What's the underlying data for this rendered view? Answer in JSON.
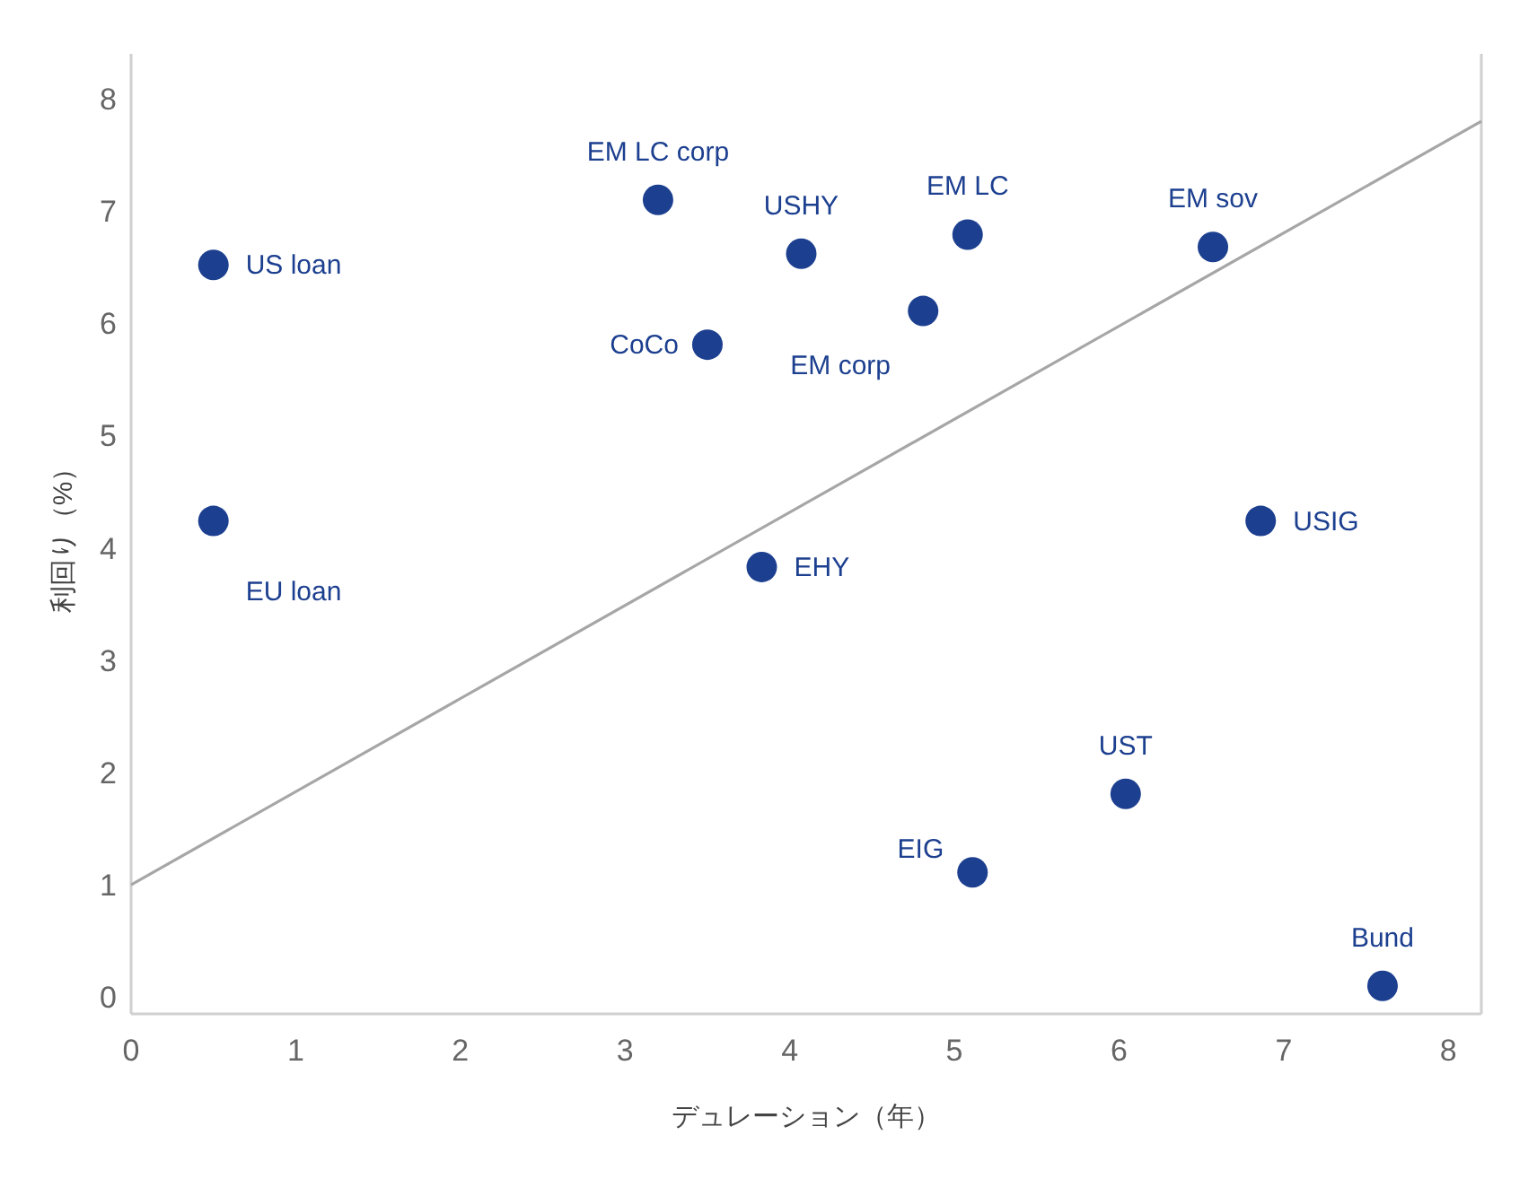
{
  "chart_data": {
    "type": "scatter",
    "xlabel": "デュレーション（年）",
    "ylabel": "利回り（%）",
    "xlim": [
      0,
      8.2
    ],
    "ylim": [
      -0.15,
      8.4
    ],
    "xticks": [
      0,
      1,
      2,
      3,
      4,
      5,
      6,
      7,
      8
    ],
    "yticks": [
      0,
      1,
      2,
      3,
      4,
      5,
      6,
      7,
      8
    ],
    "grid": false,
    "series": [
      {
        "color": "#1c3f8f",
        "marker": "circle",
        "x": [
          0.5,
          0.5,
          3.2,
          3.5,
          3.83,
          4.07,
          4.81,
          5.08,
          6.57,
          6.86,
          6.04,
          5.11,
          7.6
        ],
        "values": [
          6.52,
          4.24,
          7.1,
          5.81,
          3.83,
          6.62,
          6.11,
          6.79,
          6.68,
          4.24,
          1.81,
          1.11,
          0.1
        ]
      },
      {
        "type": "line",
        "color": "#a6a6a6",
        "line_style": "solid",
        "x": [
          0,
          8.2
        ],
        "values": [
          1,
          7.8
        ]
      }
    ],
    "annotations": [
      {
        "text": "US loan",
        "x": 0.5,
        "y": 6.52
      },
      {
        "text": "EU loan",
        "x": 0.5,
        "y": 4.24
      },
      {
        "text": "EM LC corp",
        "x": 3.2,
        "y": 7.1
      },
      {
        "text": "CoCo",
        "x": 3.5,
        "y": 5.81
      },
      {
        "text": "EHY",
        "x": 3.83,
        "y": 3.83
      },
      {
        "text": "USHY",
        "x": 4.07,
        "y": 6.62
      },
      {
        "text": "EM corp",
        "x": 4.81,
        "y": 6.11
      },
      {
        "text": "EM LC",
        "x": 5.08,
        "y": 6.79
      },
      {
        "text": "EM sov",
        "x": 6.57,
        "y": 6.68
      },
      {
        "text": "USIG",
        "x": 6.86,
        "y": 4.24
      },
      {
        "text": "UST",
        "x": 6.04,
        "y": 1.81
      },
      {
        "text": "EIG",
        "x": 5.11,
        "y": 1.11
      },
      {
        "text": "Bund",
        "x": 7.6,
        "y": 0.1
      }
    ]
  }
}
